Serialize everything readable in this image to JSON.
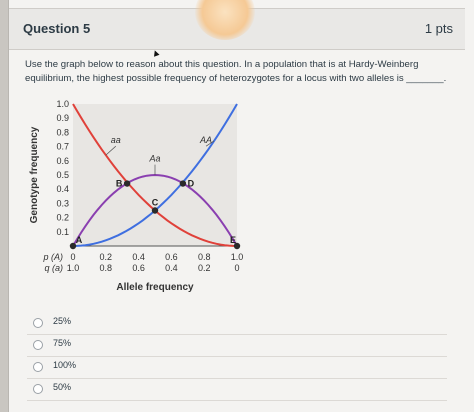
{
  "question": {
    "title": "Question 5",
    "points": "1 pts",
    "prompt": "Use the graph below to reason about this question. In a population that is at Hardy-Weinberg equilibrium, the highest possible frequency of heterozygotes for a locus with two alleles is _______."
  },
  "answers": [
    {
      "label": "25%"
    },
    {
      "label": "75%"
    },
    {
      "label": "100%"
    },
    {
      "label": "50%"
    }
  ],
  "chart_data": {
    "type": "line",
    "ylabel": "Genotype frequency",
    "xlabel": "Allele frequency",
    "ylim": [
      0,
      1.0
    ],
    "y_ticks": [
      "0.1",
      "0.2",
      "0.3",
      "0.4",
      "0.5",
      "0.6",
      "0.7",
      "0.8",
      "0.9",
      "1.0"
    ],
    "x_row_label_p": "p (A)",
    "x_row_label_q": "q (a)",
    "p_ticks": [
      "0",
      "0.2",
      "0.4",
      "0.6",
      "0.8",
      "1.0"
    ],
    "q_ticks": [
      "1.0",
      "0.8",
      "0.6",
      "0.4",
      "0.2",
      "0"
    ],
    "x": [
      0,
      0.1,
      0.2,
      0.3,
      0.4,
      0.5,
      0.6,
      0.7,
      0.8,
      0.9,
      1.0
    ],
    "series": [
      {
        "name": "aa",
        "color": "#e0413a",
        "values": [
          1.0,
          0.81,
          0.64,
          0.49,
          0.36,
          0.25,
          0.16,
          0.09,
          0.04,
          0.01,
          0.0
        ]
      },
      {
        "name": "AA",
        "color": "#3f6fe0",
        "values": [
          0.0,
          0.01,
          0.04,
          0.09,
          0.16,
          0.25,
          0.36,
          0.49,
          0.64,
          0.81,
          1.0
        ]
      },
      {
        "name": "Aa",
        "color": "#8a3fb0",
        "values": [
          0.0,
          0.18,
          0.32,
          0.42,
          0.48,
          0.5,
          0.48,
          0.42,
          0.32,
          0.18,
          0.0
        ]
      }
    ],
    "points": [
      {
        "label": "A",
        "x": 0.0,
        "y": 0.0
      },
      {
        "label": "B",
        "x": 0.33,
        "y": 0.44
      },
      {
        "label": "C",
        "x": 0.5,
        "y": 0.25
      },
      {
        "label": "D",
        "x": 0.67,
        "y": 0.44
      },
      {
        "label": "E",
        "x": 1.0,
        "y": 0.0
      }
    ],
    "plot_background": "#e8e6e3"
  }
}
